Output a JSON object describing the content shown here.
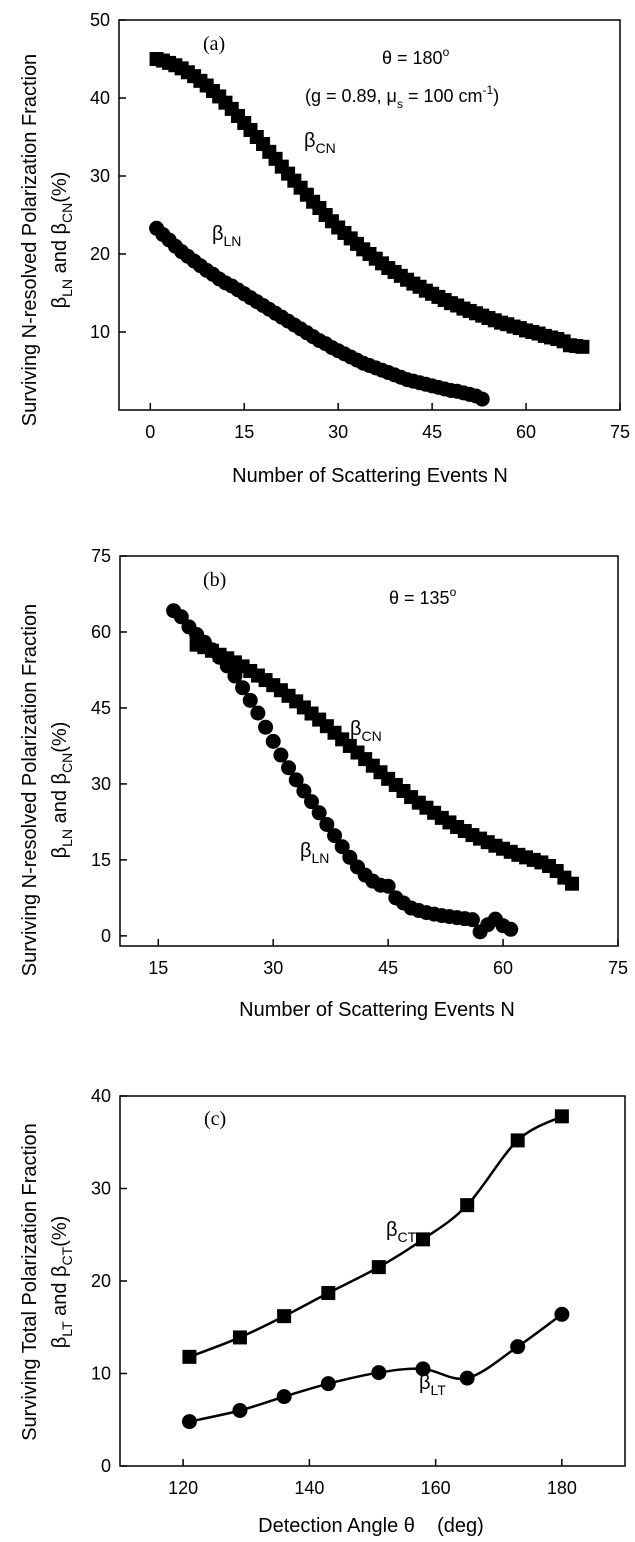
{
  "chart_data": [
    {
      "type": "scatter",
      "panel_label": "(a)",
      "annotation_angle": "θ = 180°",
      "annotation_params": "(g = 0.89, μs = 100 cm⁻¹)",
      "xlabel": "Number of Scattering Events N",
      "ylabel_line1": "Surviving N-resolved Polarization Fraction",
      "ylabel_line2": "βLN and βCN(%)",
      "xlim": [
        -5,
        75
      ],
      "ylim": [
        0,
        50
      ],
      "xticks": [
        0,
        15,
        30,
        45,
        60,
        75
      ],
      "yticks": [
        10,
        20,
        30,
        40,
        50
      ],
      "series": [
        {
          "name": "βCN",
          "marker": "square",
          "x": [
            1,
            2,
            3,
            4,
            5,
            6,
            7,
            8,
            9,
            10,
            11,
            12,
            13,
            14,
            15,
            16,
            17,
            18,
            19,
            20,
            21,
            22,
            23,
            24,
            25,
            26,
            27,
            28,
            29,
            30,
            31,
            32,
            33,
            34,
            35,
            36,
            37,
            38,
            39,
            40,
            41,
            42,
            43,
            44,
            45,
            46,
            47,
            48,
            49,
            50,
            51,
            52,
            53,
            54,
            55,
            56,
            57,
            58,
            59,
            60,
            61,
            62,
            63,
            64,
            65,
            66,
            67,
            68,
            69
          ],
          "y": [
            45,
            44.8,
            44.5,
            44.2,
            43.8,
            43.3,
            42.8,
            42.2,
            41.6,
            40.9,
            40.2,
            39.4,
            38.6,
            37.7,
            36.8,
            35.9,
            35,
            34.1,
            33.1,
            32.2,
            31.2,
            30.3,
            29.4,
            28.5,
            27.6,
            26.7,
            25.9,
            25,
            24.2,
            23.4,
            22.7,
            22,
            21.3,
            20.6,
            20,
            19.4,
            18.8,
            18.2,
            17.7,
            17.2,
            16.7,
            16.2,
            15.8,
            15.3,
            14.9,
            14.5,
            14.1,
            13.7,
            13.4,
            13,
            12.7,
            12.4,
            12.1,
            11.8,
            11.5,
            11.2,
            11,
            10.7,
            10.5,
            10.2,
            10,
            9.8,
            9.5,
            9.3,
            9.1,
            8.8,
            8.3,
            8.2,
            8.1
          ]
        },
        {
          "name": "βLN",
          "marker": "circle",
          "x": [
            1,
            2,
            3,
            4,
            5,
            6,
            7,
            8,
            9,
            10,
            11,
            12,
            13,
            14,
            15,
            16,
            17,
            18,
            19,
            20,
            21,
            22,
            23,
            24,
            25,
            26,
            27,
            28,
            29,
            30,
            31,
            32,
            33,
            34,
            35,
            36,
            37,
            38,
            39,
            40,
            41,
            42,
            43,
            44,
            45,
            46,
            47,
            48,
            49,
            50,
            51,
            52,
            53
          ],
          "y": [
            23.3,
            22.5,
            21.8,
            21,
            20.3,
            19.7,
            19.1,
            18.5,
            17.9,
            17.4,
            16.8,
            16.3,
            15.9,
            15.4,
            14.9,
            14.4,
            13.9,
            13.4,
            12.9,
            12.4,
            11.9,
            11.4,
            10.9,
            10.4,
            9.9,
            9.4,
            8.9,
            8.5,
            8,
            7.6,
            7.2,
            6.8,
            6.4,
            6,
            5.7,
            5.4,
            5.1,
            4.8,
            4.5,
            4.2,
            3.9,
            3.7,
            3.5,
            3.3,
            3.1,
            2.9,
            2.7,
            2.5,
            2.4,
            2.2,
            2,
            1.8,
            1.4
          ]
        }
      ],
      "series_labels": [
        "βCN",
        "βLN"
      ]
    },
    {
      "type": "scatter",
      "panel_label": "(b)",
      "annotation_angle": "θ = 135°",
      "xlabel": "Number of Scattering Events N",
      "ylabel_line1": "Surviving N-resolved Polarization Fraction",
      "ylabel_line2": "βLN and βCN(%)",
      "xlim": [
        10,
        75
      ],
      "ylim": [
        -2,
        75
      ],
      "xticks": [
        15,
        30,
        45,
        60,
        75
      ],
      "yticks": [
        0,
        15,
        30,
        45,
        60,
        75
      ],
      "series": [
        {
          "name": "βCN",
          "marker": "square",
          "x": [
            20,
            21,
            22,
            23,
            24,
            25,
            26,
            27,
            28,
            29,
            30,
            31,
            32,
            33,
            34,
            35,
            36,
            37,
            38,
            39,
            40,
            41,
            42,
            43,
            44,
            45,
            46,
            47,
            48,
            49,
            50,
            51,
            52,
            53,
            54,
            55,
            56,
            57,
            58,
            59,
            60,
            61,
            62,
            63,
            64,
            65,
            66,
            67,
            68,
            69
          ],
          "y": [
            57.5,
            57,
            56.3,
            55.5,
            54.8,
            54,
            53.2,
            52.3,
            51.4,
            50.5,
            49.5,
            48.5,
            47.4,
            46.3,
            45.1,
            43.9,
            42.7,
            41.4,
            40.1,
            38.8,
            37.5,
            36.2,
            34.9,
            33.6,
            32.3,
            31,
            29.8,
            28.6,
            27.4,
            26.3,
            25.3,
            24.3,
            23.3,
            22.4,
            21.5,
            20.7,
            19.9,
            19.2,
            18.5,
            17.8,
            17.2,
            16.6,
            16,
            15.5,
            15,
            14.5,
            13.8,
            12.8,
            11.5,
            10.3
          ]
        },
        {
          "name": "βLN",
          "marker": "circle",
          "x": [
            17,
            18,
            19,
            20,
            21,
            22,
            23,
            24,
            25,
            26,
            27,
            28,
            29,
            30,
            31,
            32,
            33,
            34,
            35,
            36,
            37,
            38,
            39,
            40,
            41,
            42,
            43,
            44,
            45,
            46,
            47,
            48,
            49,
            50,
            51,
            52,
            53,
            54,
            55,
            56,
            57,
            58,
            59,
            60,
            61
          ],
          "y": [
            64.2,
            63,
            61,
            59.5,
            58,
            56.5,
            55,
            53.3,
            51.3,
            49,
            46.5,
            44,
            41.2,
            38.4,
            35.7,
            33.2,
            30.8,
            28.6,
            26.5,
            24.3,
            22,
            19.8,
            17.6,
            15.5,
            13.6,
            12,
            10.8,
            10,
            9.8,
            7.5,
            6.5,
            5.5,
            5,
            4.6,
            4.3,
            4,
            3.8,
            3.6,
            3.4,
            3.2,
            0.8,
            2.2,
            3.3,
            2,
            1.3
          ]
        }
      ],
      "series_labels": [
        "βCN",
        "βLN"
      ]
    },
    {
      "type": "line",
      "panel_label": "(c)",
      "xlabel": "Detection Angle θ    (deg)",
      "ylabel_line1": "Surviving Total Polarization Fraction",
      "ylabel_line2": "βLT and βCT(%)",
      "xlim": [
        110,
        190
      ],
      "ylim": [
        0,
        40
      ],
      "xticks": [
        120,
        140,
        160,
        180
      ],
      "yticks": [
        0,
        10,
        20,
        30,
        40
      ],
      "series": [
        {
          "name": "βCT",
          "marker": "square",
          "x": [
            121,
            129,
            136,
            143,
            151,
            158,
            165,
            173,
            180
          ],
          "y": [
            11.8,
            13.9,
            16.2,
            18.7,
            21.5,
            24.5,
            28.2,
            35.2,
            37.8
          ]
        },
        {
          "name": "βLT",
          "marker": "circle",
          "x": [
            121,
            129,
            136,
            143,
            151,
            158,
            165,
            173,
            180
          ],
          "y": [
            4.8,
            6,
            7.5,
            8.9,
            10.1,
            10.5,
            9.5,
            12.9,
            16.4
          ]
        }
      ],
      "series_labels": [
        "βCT",
        "βLT"
      ]
    }
  ]
}
